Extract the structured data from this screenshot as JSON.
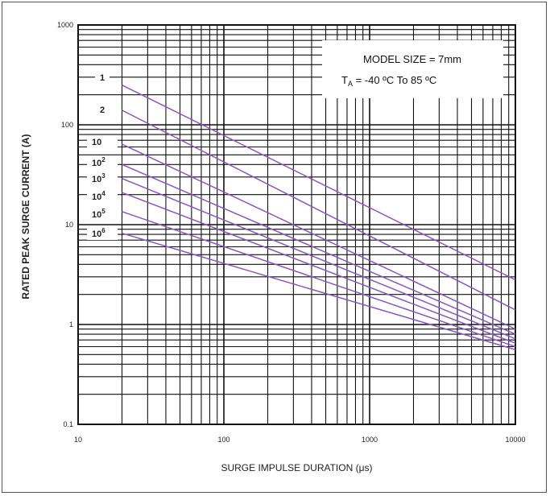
{
  "chart_data": {
    "type": "line",
    "title": "",
    "xlabel": "SURGE IMPULSE DURATION (μs)",
    "ylabel": "RATED PEAK SURGE CURRENT (A)",
    "x_scale": "log",
    "y_scale": "log",
    "xlim": [
      10,
      10000
    ],
    "ylim": [
      0.1,
      1000
    ],
    "grid": true,
    "x_ticks": [
      {
        "value": 10,
        "label": "10"
      },
      {
        "value": 100,
        "label": "100"
      },
      {
        "value": 1000,
        "label": "1000"
      },
      {
        "value": 10000,
        "label": "10000"
      }
    ],
    "y_ticks": [
      {
        "value": 0.1,
        "label": "0.1"
      },
      {
        "value": 1,
        "label": "1"
      },
      {
        "value": 10,
        "label": "10"
      },
      {
        "value": 100,
        "label": "100"
      },
      {
        "value": 1000,
        "label": "1000"
      }
    ],
    "annotation": {
      "line1": "MODEL SIZE = 7mm",
      "line2_prefix": "T",
      "line2_sub": "A",
      "line2_suffix": " = -40 ºC To 85 ºC"
    },
    "line_color": "#8a55c8",
    "series": [
      {
        "label": "1",
        "label_base": "1",
        "label_sup": "",
        "points": [
          [
            20,
            250
          ],
          [
            10000,
            2.8
          ]
        ]
      },
      {
        "label": "2",
        "label_base": "2",
        "label_sup": "",
        "points": [
          [
            20,
            140
          ],
          [
            10000,
            1.4
          ]
        ]
      },
      {
        "label": "10",
        "label_base": "10",
        "label_sup": "",
        "points": [
          [
            20,
            64
          ],
          [
            10000,
            0.9
          ]
        ]
      },
      {
        "label": "10²",
        "label_base": "10",
        "label_sup": "2",
        "points": [
          [
            20,
            40
          ],
          [
            10000,
            0.8
          ]
        ]
      },
      {
        "label": "10³",
        "label_base": "10",
        "label_sup": "3",
        "points": [
          [
            20,
            29
          ],
          [
            10000,
            0.72
          ]
        ]
      },
      {
        "label": "10⁴",
        "label_base": "10",
        "label_sup": "4",
        "points": [
          [
            20,
            21
          ],
          [
            10000,
            0.65
          ]
        ]
      },
      {
        "label": "10⁵",
        "label_base": "10",
        "label_sup": "5",
        "points": [
          [
            20,
            13.5
          ],
          [
            10000,
            0.6
          ]
        ]
      },
      {
        "label": "10⁶",
        "label_base": "10",
        "label_sup": "6",
        "points": [
          [
            20,
            8.2
          ],
          [
            10000,
            0.56
          ]
        ]
      }
    ]
  }
}
